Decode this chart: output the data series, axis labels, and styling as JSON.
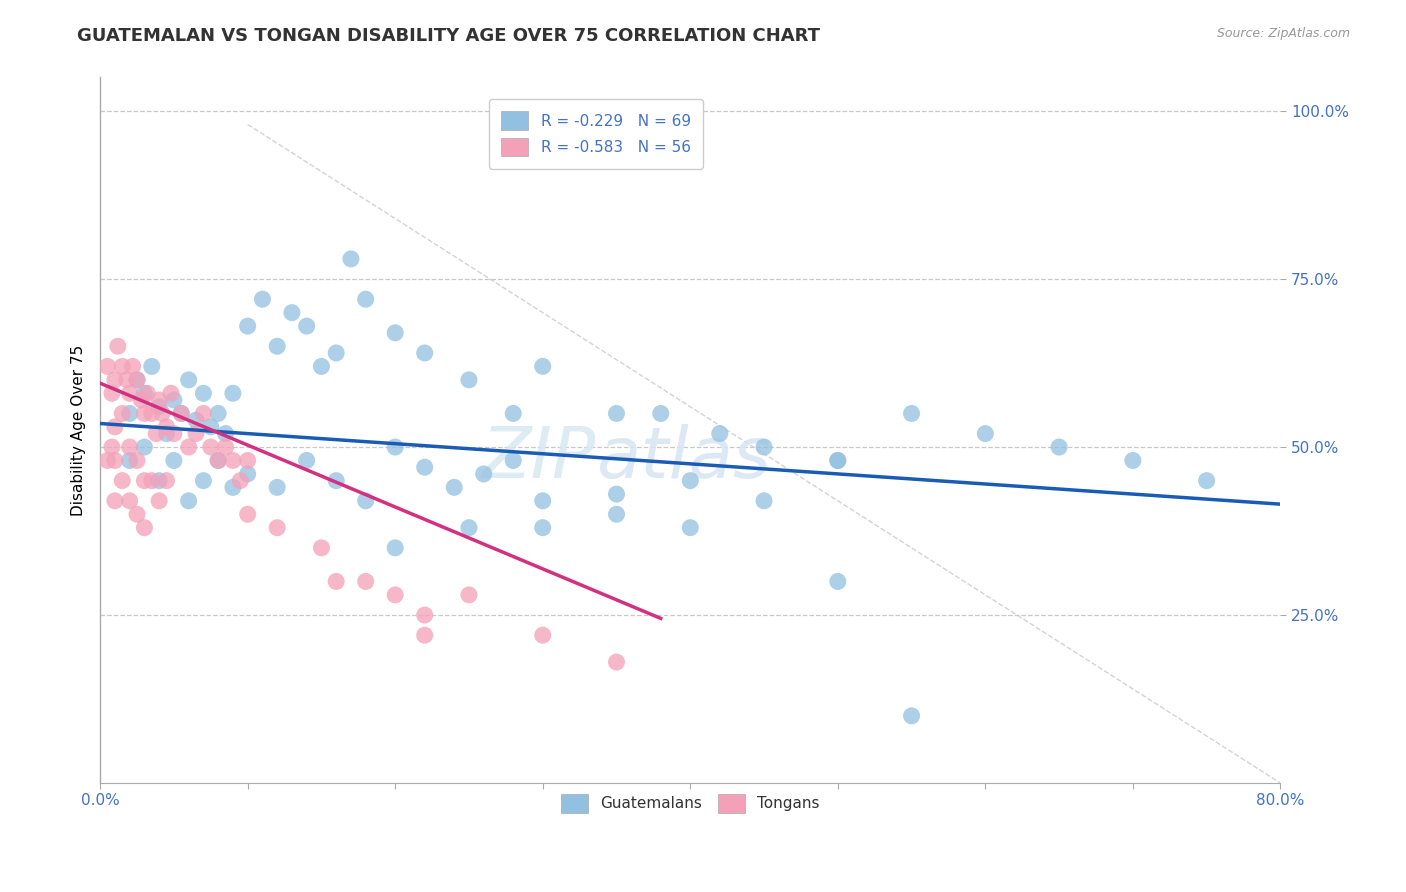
{
  "title": "GUATEMALAN VS TONGAN DISABILITY AGE OVER 75 CORRELATION CHART",
  "source_text": "Source: ZipAtlas.com",
  "ylabel": "Disability Age Over 75",
  "ytick_labels": [
    "25.0%",
    "50.0%",
    "75.0%",
    "100.0%"
  ],
  "ytick_values": [
    0.25,
    0.5,
    0.75,
    1.0
  ],
  "xlim": [
    0.0,
    0.8
  ],
  "ylim": [
    0.0,
    1.05
  ],
  "guatemalan_color": "#92c0e0",
  "tongan_color": "#f4a0b8",
  "guatemalan_line_color": "#1a5bb5",
  "tongan_line_color": "#d43080",
  "background_color": "#ffffff",
  "grid_color": "#c8c8c8",
  "text_color": "#4472c4",
  "watermark": "ZIPatlas",
  "guatemalan_R": -0.229,
  "guatemalan_N": 69,
  "tongan_R": -0.583,
  "tongan_N": 56,
  "guatemalan_line_x0": 0.0,
  "guatemalan_line_y0": 0.535,
  "guatemalan_line_x1": 0.8,
  "guatemalan_line_y1": 0.415,
  "tongan_line_x0": 0.0,
  "tongan_line_y0": 0.595,
  "tongan_line_x1": 0.38,
  "tongan_line_y1": 0.245,
  "diag_line_x0": 0.1,
  "diag_line_y0": 0.98,
  "diag_line_x1": 0.8,
  "diag_line_y1": 0.0,
  "guatemalan_pts_x": [
    0.02,
    0.025,
    0.03,
    0.035,
    0.04,
    0.045,
    0.05,
    0.055,
    0.06,
    0.065,
    0.07,
    0.075,
    0.08,
    0.085,
    0.09,
    0.1,
    0.11,
    0.12,
    0.13,
    0.14,
    0.15,
    0.16,
    0.17,
    0.18,
    0.2,
    0.22,
    0.25,
    0.28,
    0.3,
    0.35,
    0.38,
    0.42,
    0.45,
    0.5,
    0.55,
    0.6,
    0.65,
    0.7,
    0.75,
    0.02,
    0.03,
    0.04,
    0.05,
    0.06,
    0.07,
    0.08,
    0.09,
    0.1,
    0.12,
    0.14,
    0.16,
    0.18,
    0.2,
    0.22,
    0.24,
    0.26,
    0.28,
    0.3,
    0.35,
    0.4,
    0.45,
    0.5,
    0.3,
    0.35,
    0.4,
    0.5,
    0.2,
    0.25,
    0.55
  ],
  "guatemalan_pts_y": [
    0.55,
    0.6,
    0.58,
    0.62,
    0.56,
    0.52,
    0.57,
    0.55,
    0.6,
    0.54,
    0.58,
    0.53,
    0.55,
    0.52,
    0.58,
    0.68,
    0.72,
    0.65,
    0.7,
    0.68,
    0.62,
    0.64,
    0.78,
    0.72,
    0.67,
    0.64,
    0.6,
    0.55,
    0.62,
    0.55,
    0.55,
    0.52,
    0.5,
    0.48,
    0.55,
    0.52,
    0.5,
    0.48,
    0.45,
    0.48,
    0.5,
    0.45,
    0.48,
    0.42,
    0.45,
    0.48,
    0.44,
    0.46,
    0.44,
    0.48,
    0.45,
    0.42,
    0.5,
    0.47,
    0.44,
    0.46,
    0.48,
    0.42,
    0.43,
    0.45,
    0.42,
    0.48,
    0.38,
    0.4,
    0.38,
    0.3,
    0.35,
    0.38,
    0.1
  ],
  "tongan_pts_x": [
    0.005,
    0.008,
    0.01,
    0.012,
    0.015,
    0.018,
    0.02,
    0.022,
    0.025,
    0.028,
    0.03,
    0.032,
    0.035,
    0.038,
    0.04,
    0.042,
    0.045,
    0.048,
    0.05,
    0.055,
    0.06,
    0.065,
    0.07,
    0.075,
    0.08,
    0.085,
    0.09,
    0.095,
    0.1,
    0.01,
    0.015,
    0.02,
    0.025,
    0.03,
    0.035,
    0.04,
    0.045,
    0.005,
    0.008,
    0.01,
    0.015,
    0.02,
    0.025,
    0.03,
    0.15,
    0.16,
    0.2,
    0.22,
    0.25,
    0.3,
    0.35,
    0.1,
    0.12,
    0.18,
    0.22,
    0.01
  ],
  "tongan_pts_y": [
    0.62,
    0.58,
    0.6,
    0.65,
    0.62,
    0.6,
    0.58,
    0.62,
    0.6,
    0.57,
    0.55,
    0.58,
    0.55,
    0.52,
    0.57,
    0.55,
    0.53,
    0.58,
    0.52,
    0.55,
    0.5,
    0.52,
    0.55,
    0.5,
    0.48,
    0.5,
    0.48,
    0.45,
    0.48,
    0.53,
    0.55,
    0.5,
    0.48,
    0.45,
    0.45,
    0.42,
    0.45,
    0.48,
    0.5,
    0.48,
    0.45,
    0.42,
    0.4,
    0.38,
    0.35,
    0.3,
    0.28,
    0.25,
    0.28,
    0.22,
    0.18,
    0.4,
    0.38,
    0.3,
    0.22,
    0.42
  ]
}
